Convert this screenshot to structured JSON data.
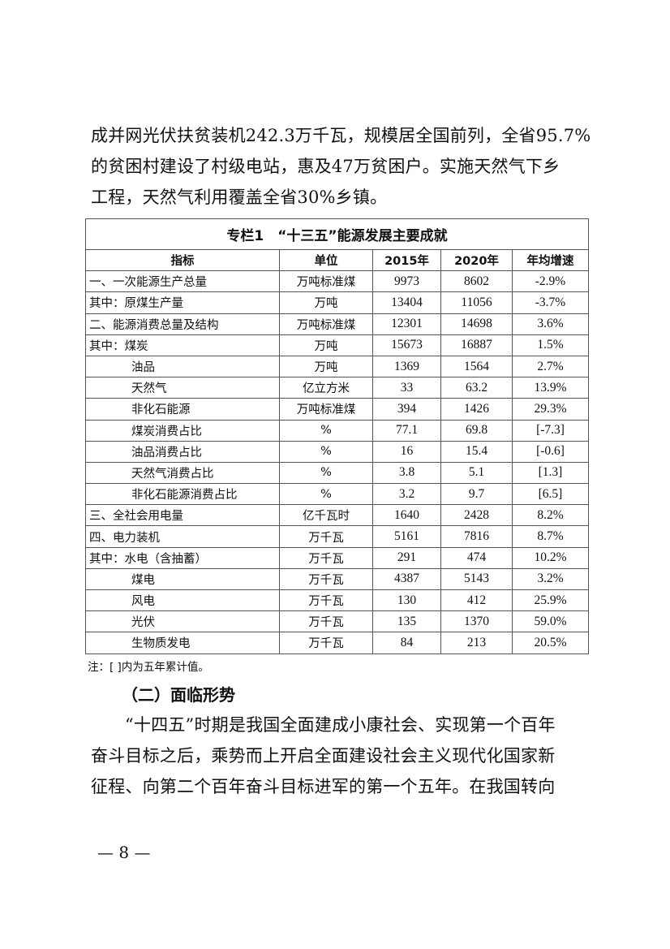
{
  "intro_lines": [
    "成并网光伏扶贫装机242.3万千瓦，规模居全国前列，全省95.7%",
    "的贫困村建设了村级电站，惠及47万贫困户。实施天然气下乡",
    "工程，天然气利用覆盖全省30%乡镇。"
  ],
  "table": {
    "caption": "专栏1　“十三五”能源发展主要成就",
    "headers": [
      "指标",
      "单位",
      "2015年",
      "2020年",
      "年均增速"
    ],
    "rows": [
      {
        "indicator": "一、一次能源生产总量",
        "unit": "万吨标准煤",
        "y2015": "9973",
        "y2020": "8602",
        "growth": "-2.9%",
        "indent": false
      },
      {
        "indicator": "其中：原煤生产量",
        "unit": "万吨",
        "y2015": "13404",
        "y2020": "11056",
        "growth": "-3.7%",
        "indent": false
      },
      {
        "indicator": "二、能源消费总量及结构",
        "unit": "万吨标准煤",
        "y2015": "12301",
        "y2020": "14698",
        "growth": "3.6%",
        "indent": false
      },
      {
        "indicator": "其中：煤炭",
        "unit": "万吨",
        "y2015": "15673",
        "y2020": "16887",
        "growth": "1.5%",
        "indent": false
      },
      {
        "indicator": "油品",
        "unit": "万吨",
        "y2015": "1369",
        "y2020": "1564",
        "growth": "2.7%",
        "indent": true
      },
      {
        "indicator": "天然气",
        "unit": "亿立方米",
        "y2015": "33",
        "y2020": "63.2",
        "growth": "13.9%",
        "indent": true
      },
      {
        "indicator": "非化石能源",
        "unit": "万吨标准煤",
        "y2015": "394",
        "y2020": "1426",
        "growth": "29.3%",
        "indent": true
      },
      {
        "indicator": "煤炭消费占比",
        "unit": "%",
        "y2015": "77.1",
        "y2020": "69.8",
        "growth": "[-7.3]",
        "indent": true
      },
      {
        "indicator": "油品消费占比",
        "unit": "%",
        "y2015": "16",
        "y2020": "15.4",
        "growth": "[-0.6]",
        "indent": true
      },
      {
        "indicator": "天然气消费占比",
        "unit": "%",
        "y2015": "3.8",
        "y2020": "5.1",
        "growth": "[1.3]",
        "indent": true
      },
      {
        "indicator": "非化石能源消费占比",
        "unit": "%",
        "y2015": "3.2",
        "y2020": "9.7",
        "growth": "[6.5]",
        "indent": true
      },
      {
        "indicator": "三、全社会用电量",
        "unit": "亿千瓦时",
        "y2015": "1640",
        "y2020": "2428",
        "growth": "8.2%",
        "indent": false
      },
      {
        "indicator": "四、电力装机",
        "unit": "万千瓦",
        "y2015": "5161",
        "y2020": "7816",
        "growth": "8.7%",
        "indent": false
      },
      {
        "indicator": "其中：水电（含抽蓄）",
        "unit": "万千瓦",
        "y2015": "291",
        "y2020": "474",
        "growth": "10.2%",
        "indent": false
      },
      {
        "indicator": "煤电",
        "unit": "万千瓦",
        "y2015": "4387",
        "y2020": "5143",
        "growth": "3.2%",
        "indent": true
      },
      {
        "indicator": "风电",
        "unit": "万千瓦",
        "y2015": "130",
        "y2020": "412",
        "growth": "25.9%",
        "indent": true
      },
      {
        "indicator": "光伏",
        "unit": "万千瓦",
        "y2015": "135",
        "y2020": "1370",
        "growth": "59.0%",
        "indent": true
      },
      {
        "indicator": "生物质发电",
        "unit": "万千瓦",
        "y2015": "84",
        "y2020": "213",
        "growth": "20.5%",
        "indent": true
      }
    ],
    "note": "注：[ ]内为五年累计值。"
  },
  "section_heading": "（二）面临形势",
  "body_lines": [
    "“十四五”时期是我国全面建成小康社会、实现第一个百年",
    "奋斗目标之后，乘势而上开启全面建设社会主义现代化国家新",
    "征程、向第二个百年奋斗目标进军的第一个五年。在我国转向"
  ],
  "page_number": "— 8 —"
}
